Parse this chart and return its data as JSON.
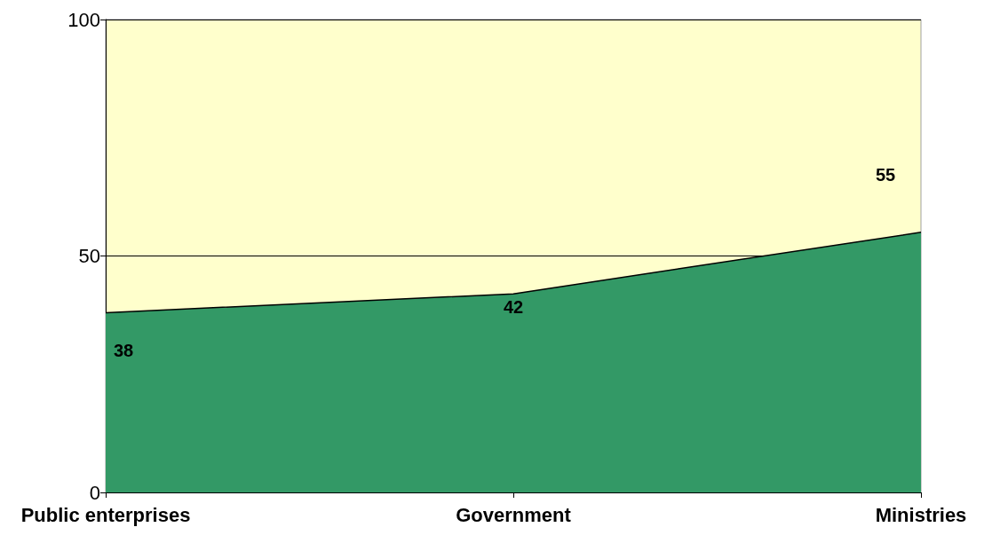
{
  "chart_data": {
    "type": "area",
    "categories": [
      "Public enterprises",
      "Government",
      "Ministries"
    ],
    "values": [
      38,
      42,
      55
    ],
    "color": "#339966",
    "ylim": [
      0,
      100
    ],
    "yticks": [
      0,
      50,
      100
    ],
    "grid": "y",
    "data_labels": true
  }
}
